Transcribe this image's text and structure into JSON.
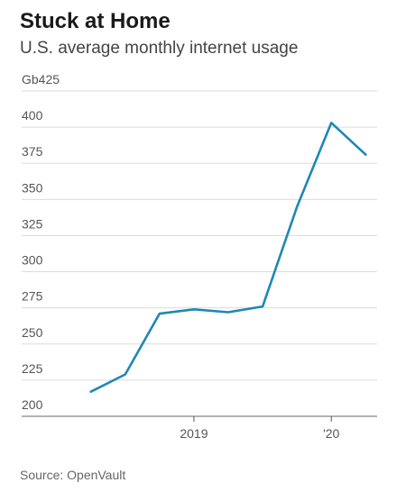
{
  "header": {
    "title": "Stuck at Home",
    "subtitle": "U.S. average monthly internet usage"
  },
  "footer": {
    "source": "Source: OpenVault"
  },
  "chart_data": {
    "type": "line",
    "title": "Stuck at Home",
    "subtitle": "U.S. average monthly internet usage",
    "y_unit": "Gb",
    "ylim": [
      200,
      425
    ],
    "yticks": [
      200,
      225,
      250,
      275,
      300,
      325,
      350,
      375,
      400,
      425
    ],
    "ytick_labels": [
      "200",
      "225",
      "250",
      "275",
      "300",
      "325",
      "350",
      "375",
      "400",
      "Gb425"
    ],
    "xlim": [
      "2018-03",
      "2020-05"
    ],
    "xticks": [
      "2019-01",
      "2020-01"
    ],
    "xtick_labels": [
      "2019",
      "'20"
    ],
    "grid": true,
    "line_color": "#1f87b5",
    "series": [
      {
        "x": [
          "2018-04",
          "2018-07",
          "2018-10",
          "2019-01",
          "2019-04",
          "2019-07",
          "2019-10",
          "2020-01",
          "2020-04"
        ],
        "values": [
          217,
          229,
          271,
          274,
          272,
          276,
          345,
          403,
          381
        ]
      }
    ]
  }
}
